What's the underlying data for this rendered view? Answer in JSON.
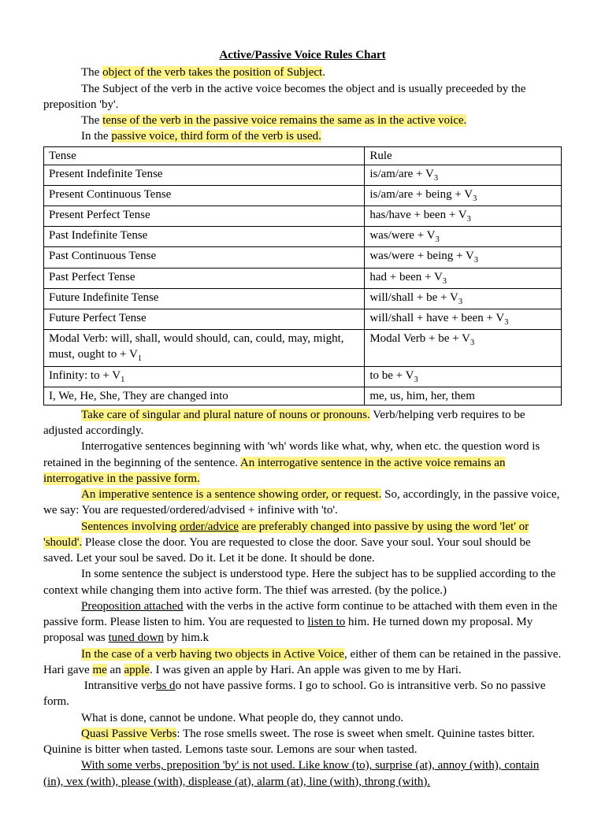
{
  "title": "Active/Passive Voice Rules Chart",
  "intro": {
    "p1a": "The ",
    "p1hl": "object of the verb takes the position of Subject",
    "p1b": ".",
    "p2": "The Subject of the verb in the active voice becomes the object and is usually preceeded by the preposition 'by'.",
    "p3a": "The ",
    "p3hl": "tense of the verb in the passive voice remains the same as in the active voice.",
    "p4a": "In the ",
    "p4hl": "passive voice, third form of the verb is used."
  },
  "table": {
    "header": {
      "c1": "Tense",
      "c2": "Rule"
    },
    "rows": [
      {
        "c1": "Present Indefinite Tense",
        "c2a": "is/am/are + V",
        "c2sub": "3"
      },
      {
        "c1": "Present Continuous Tense",
        "c2a": "is/am/are + being + V",
        "c2sub": "3"
      },
      {
        "c1": "Present Perfect Tense",
        "c2a": "has/have + been + V",
        "c2sub": "3"
      },
      {
        "c1": "Past Indefinite Tense",
        "c2a": "was/were + V",
        "c2sub": "3"
      },
      {
        "c1": "Past Continuous Tense",
        "c2a": "was/were + being + V",
        "c2sub": "3"
      },
      {
        "c1": "Past Perfect Tense",
        "c2a": "had + been + V",
        "c2sub": "3"
      },
      {
        "c1": "Future Indefinite Tense",
        "c2a": "will/shall + be + V",
        "c2sub": "3"
      },
      {
        "c1": "Future Perfect Tense",
        "c2a": "will/shall + have + been + V",
        "c2sub": "3"
      },
      {
        "c1a": "Modal Verb: will, shall, would should, can, could, may, might, must, ought to + V",
        "c1sub": "1",
        "c2a": "Modal Verb + be + V",
        "c2sub": "3"
      },
      {
        "c1a": "Infinity: to + V",
        "c1sub": "1",
        "c2a": "to be + V",
        "c2sub": "3"
      },
      {
        "c1": "I, We, He, She, They are changed into",
        "c2a": "me, us, him, her, them"
      }
    ]
  },
  "body": {
    "p1hl": "Take care of singular and plural nature of nouns or pronouns.",
    "p1b": " Verb/helping verb requires to be adjusted accordingly.",
    "p2a": "Interrogative sentences beginning with 'wh' words like what, why, when etc. the question word is retained in the beginning of the sentence.  ",
    "p2hl": "An interrogative sentence in the active voice remains an interrogative in the passive form.",
    "p3hl": "An imperative sentence is a sentence showing order, or request.",
    "p3b": " So, accordingly, in the passive voice, we say: You are requested/ordered/advised + infinive with 'to'.",
    "p4hl_a": "Sentences involving ",
    "p4hl_ul": "order/advice",
    "p4hl_b": " are preferably changed into passive by using the word 'let' or 'should'.",
    "p4b": " Please close the door. You are requested to close the door. Save your soul. Your soul should be saved. Let your soul be saved. Do it. Let it be done. It should be done.",
    "p5": "In some sentence the subject is understood type. Here the subject has to be supplied according to the context while changing them into active form. The thief was arrested. (by the police.)",
    "p6ul": "Preoposition attached",
    "p6a": " with the verbs in the active form continue to be attached with them even in the passive form. Please listen to him. You are requested to ",
    "p6ul2": "listen to",
    "p6b": " him. He turned down my proposal. My proposal was ",
    "p6ul3": "tuned down",
    "p6c": " by him.k",
    "p7hl": "In the case of a verb having two objects in Active Voice",
    "p7a": ", either of them can be retained in the passive. Hari gave ",
    "p7hl_me": "me",
    "p7b": " an ",
    "p7hl_apple": "apple",
    "p7c": ". I was given an apple by Hari. An apple was given to me by Hari.",
    "p8a": "Intransitive ver",
    "p8ul": "bs d",
    "p8b": "o not have passive forms.  I go to school. Go is intransitive verb. So no passive form.",
    "p9": "What is done, cannot be undone. What people do, they cannot undo.",
    "p10hl": "Quasi Passive Verbs",
    "p10a": ": The rose smells sweet. The rose is sweet when smelt. Quinine tastes bitter. Quinine is bitter when tasted. Lemons taste sour. Lemons are sour when tasted.",
    "p11ul": "With some verbs, preposition 'by' is not used. Like know (to), surprise (at), annoy (with), contain (in), vex (with), please (with), displease (at), alarm (at), line (with), throng (with)."
  }
}
